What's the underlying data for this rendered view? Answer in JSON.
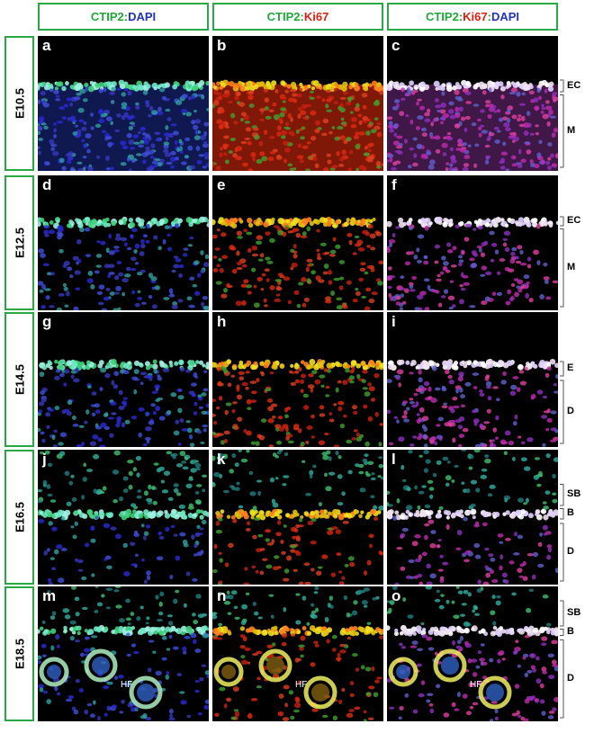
{
  "columns": [
    [
      {
        "text": "CTIP2",
        "color": "#1fa83a"
      },
      {
        "text": ":",
        "color": "#1fa83a"
      },
      {
        "text": "DAPI",
        "color": "#2233bb"
      }
    ],
    [
      {
        "text": "CTIP2",
        "color": "#1fa83a"
      },
      {
        "text": ":",
        "color": "#1fa83a"
      },
      {
        "text": "Ki67",
        "color": "#e02010"
      }
    ],
    [
      {
        "text": "CTIP2",
        "color": "#1fa83a"
      },
      {
        "text": ":",
        "color": "#1fa83a"
      },
      {
        "text": "Ki67",
        "color": "#e02010"
      },
      {
        "text": ":",
        "color": "#1fa83a"
      },
      {
        "text": "DAPI",
        "color": "#2233bb"
      }
    ]
  ],
  "rows": [
    {
      "label": "E10.5",
      "panels": [
        "a",
        "b",
        "c"
      ],
      "regions": [
        "EC",
        "M"
      ]
    },
    {
      "label": "E12.5",
      "panels": [
        "d",
        "e",
        "f"
      ],
      "regions": [
        "EC",
        "M"
      ]
    },
    {
      "label": "E14.5",
      "panels": [
        "g",
        "h",
        "i"
      ],
      "regions": [
        "E",
        "D"
      ]
    },
    {
      "label": "E16.5",
      "panels": [
        "j",
        "k",
        "l"
      ],
      "regions": [
        "SB",
        "B",
        "D"
      ]
    },
    {
      "label": "E18.5",
      "panels": [
        "m",
        "n",
        "o"
      ],
      "regions": [
        "SB",
        "B",
        "D"
      ],
      "marker": "HF"
    }
  ]
}
